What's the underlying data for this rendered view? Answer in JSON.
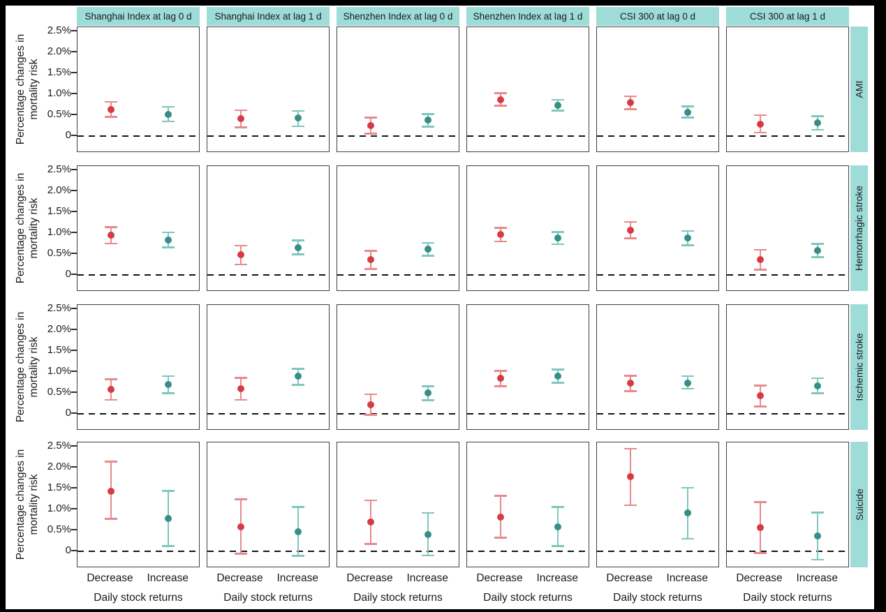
{
  "chart_data": {
    "type": "scatter",
    "subtype": "point-estimates-with-error-bars",
    "facet_cols": [
      "Shanghai Index at lag 0 d",
      "Shanghai Index at lag 1 d",
      "Shenzhen Index at lag 0 d",
      "Shenzhen Index at lag 1 d",
      "CSI 300 at lag 0 d",
      "CSI 300 at lag 1 d"
    ],
    "facet_rows": [
      "AMI",
      "Hemorrhagic stroke",
      "Ischemic stroke",
      "Suicide"
    ],
    "x_categories": [
      "Decrease",
      "Increase"
    ],
    "xlabel": "Daily stock returns",
    "ylabel_lines": [
      "Percentage changes in",
      "mortality risk"
    ],
    "y_ticks": [
      {
        "label": "2.5%",
        "value": 2.5
      },
      {
        "label": "2.0%",
        "value": 2.0
      },
      {
        "label": "1.5%",
        "value": 1.5
      },
      {
        "label": "1.0%",
        "value": 1.0
      },
      {
        "label": "0.5%",
        "value": 0.5
      },
      {
        "label": "0",
        "value": 0
      }
    ],
    "ylim": [
      -0.4,
      2.6
    ],
    "zero_line_value": 0,
    "grid": false,
    "legend": "none",
    "colors": {
      "decrease_point": "#d63b43",
      "decrease_bar": "#e9888d",
      "increase_point": "#348f89",
      "increase_bar": "#7fc7bc",
      "strip_bg": "#9edcd8",
      "panel_border": "#3f3f3f",
      "text": "#1a1a1a",
      "frame": "#000000",
      "background": "#ffffff"
    },
    "units": "percent change in mortality risk",
    "panels": [
      {
        "row": "AMI",
        "col": "Shanghai Index at lag 0 d",
        "points": [
          {
            "x": "Decrease",
            "est": 0.63,
            "ci": [
              0.44,
              0.84
            ]
          },
          {
            "x": "Increase",
            "est": 0.52,
            "ci": [
              0.33,
              0.72
            ]
          }
        ]
      },
      {
        "row": "AMI",
        "col": "Shanghai Index at lag 1 d",
        "points": [
          {
            "x": "Decrease",
            "est": 0.42,
            "ci": [
              0.19,
              0.64
            ]
          },
          {
            "x": "Increase",
            "est": 0.43,
            "ci": [
              0.21,
              0.62
            ]
          }
        ]
      },
      {
        "row": "AMI",
        "col": "Shenzhen Index at lag 0 d",
        "points": [
          {
            "x": "Decrease",
            "est": 0.25,
            "ci": [
              0.04,
              0.46
            ]
          },
          {
            "x": "Increase",
            "est": 0.39,
            "ci": [
              0.2,
              0.55
            ]
          }
        ]
      },
      {
        "row": "AMI",
        "col": "Shenzhen Index at lag 1 d",
        "points": [
          {
            "x": "Decrease",
            "est": 0.87,
            "ci": [
              0.7,
              1.05
            ]
          },
          {
            "x": "Increase",
            "est": 0.74,
            "ci": [
              0.59,
              0.89
            ]
          }
        ]
      },
      {
        "row": "AMI",
        "col": "CSI 300 at lag 0 d",
        "points": [
          {
            "x": "Decrease",
            "est": 0.8,
            "ci": [
              0.62,
              0.97
            ]
          },
          {
            "x": "Increase",
            "est": 0.57,
            "ci": [
              0.42,
              0.73
            ]
          }
        ]
      },
      {
        "row": "AMI",
        "col": "CSI 300 at lag 1 d",
        "points": [
          {
            "x": "Decrease",
            "est": 0.29,
            "ci": [
              0.06,
              0.52
            ]
          },
          {
            "x": "Increase",
            "est": 0.32,
            "ci": [
              0.13,
              0.5
            ]
          }
        ]
      },
      {
        "row": "Hemorrhagic stroke",
        "col": "Shanghai Index at lag 0 d",
        "points": [
          {
            "x": "Decrease",
            "est": 0.95,
            "ci": [
              0.73,
              1.16
            ]
          },
          {
            "x": "Increase",
            "est": 0.84,
            "ci": [
              0.64,
              1.04
            ]
          }
        ]
      },
      {
        "row": "Hemorrhagic stroke",
        "col": "Shanghai Index at lag 1 d",
        "points": [
          {
            "x": "Decrease",
            "est": 0.48,
            "ci": [
              0.23,
              0.72
            ]
          },
          {
            "x": "Increase",
            "est": 0.65,
            "ci": [
              0.47,
              0.85
            ]
          }
        ]
      },
      {
        "row": "Hemorrhagic stroke",
        "col": "Shenzhen Index at lag 0 d",
        "points": [
          {
            "x": "Decrease",
            "est": 0.37,
            "ci": [
              0.12,
              0.6
            ]
          },
          {
            "x": "Increase",
            "est": 0.61,
            "ci": [
              0.44,
              0.79
            ]
          }
        ]
      },
      {
        "row": "Hemorrhagic stroke",
        "col": "Shenzhen Index at lag 1 d",
        "points": [
          {
            "x": "Decrease",
            "est": 0.97,
            "ci": [
              0.78,
              1.15
            ]
          },
          {
            "x": "Increase",
            "est": 0.88,
            "ci": [
              0.71,
              1.05
            ]
          }
        ]
      },
      {
        "row": "Hemorrhagic stroke",
        "col": "CSI 300 at lag 0 d",
        "points": [
          {
            "x": "Decrease",
            "est": 1.07,
            "ci": [
              0.85,
              1.29
            ]
          },
          {
            "x": "Increase",
            "est": 0.88,
            "ci": [
              0.69,
              1.07
            ]
          }
        ]
      },
      {
        "row": "Hemorrhagic stroke",
        "col": "CSI 300 at lag 1 d",
        "points": [
          {
            "x": "Decrease",
            "est": 0.37,
            "ci": [
              0.1,
              0.62
            ]
          },
          {
            "x": "Increase",
            "est": 0.58,
            "ci": [
              0.4,
              0.76
            ]
          }
        ]
      },
      {
        "row": "Ischemic stroke",
        "col": "Shanghai Index at lag 0 d",
        "points": [
          {
            "x": "Decrease",
            "est": 0.58,
            "ci": [
              0.31,
              0.85
            ]
          },
          {
            "x": "Increase",
            "est": 0.7,
            "ci": [
              0.47,
              0.92
            ]
          }
        ]
      },
      {
        "row": "Ischemic stroke",
        "col": "Shanghai Index at lag 1 d",
        "points": [
          {
            "x": "Decrease",
            "est": 0.6,
            "ci": [
              0.31,
              0.88
            ]
          },
          {
            "x": "Increase",
            "est": 0.9,
            "ci": [
              0.67,
              1.1
            ]
          }
        ]
      },
      {
        "row": "Ischemic stroke",
        "col": "Shenzhen Index at lag 0 d",
        "points": [
          {
            "x": "Decrease",
            "est": 0.22,
            "ci": [
              -0.05,
              0.49
            ]
          },
          {
            "x": "Increase",
            "est": 0.5,
            "ci": [
              0.3,
              0.68
            ]
          }
        ]
      },
      {
        "row": "Ischemic stroke",
        "col": "Shenzhen Index at lag 1 d",
        "points": [
          {
            "x": "Decrease",
            "est": 0.85,
            "ci": [
              0.64,
              1.05
            ]
          },
          {
            "x": "Increase",
            "est": 0.9,
            "ci": [
              0.72,
              1.08
            ]
          }
        ]
      },
      {
        "row": "Ischemic stroke",
        "col": "CSI 300 at lag 0 d",
        "points": [
          {
            "x": "Decrease",
            "est": 0.73,
            "ci": [
              0.52,
              0.93
            ]
          },
          {
            "x": "Increase",
            "est": 0.74,
            "ci": [
              0.58,
              0.92
            ]
          }
        ]
      },
      {
        "row": "Ischemic stroke",
        "col": "CSI 300 at lag 1 d",
        "points": [
          {
            "x": "Decrease",
            "est": 0.44,
            "ci": [
              0.15,
              0.7
            ]
          },
          {
            "x": "Increase",
            "est": 0.67,
            "ci": [
              0.47,
              0.87
            ]
          }
        ]
      },
      {
        "row": "Suicide",
        "col": "Shanghai Index at lag 0 d",
        "points": [
          {
            "x": "Decrease",
            "est": 1.44,
            "ci": [
              0.75,
              2.16
            ]
          },
          {
            "x": "Increase",
            "est": 0.78,
            "ci": [
              0.1,
              1.46
            ]
          }
        ]
      },
      {
        "row": "Suicide",
        "col": "Shanghai Index at lag 1 d",
        "points": [
          {
            "x": "Decrease",
            "est": 0.58,
            "ci": [
              -0.08,
              1.26
            ]
          },
          {
            "x": "Increase",
            "est": 0.47,
            "ci": [
              -0.13,
              1.08
            ]
          }
        ]
      },
      {
        "row": "Suicide",
        "col": "Shenzhen Index at lag 0 d",
        "points": [
          {
            "x": "Decrease",
            "est": 0.7,
            "ci": [
              0.15,
              1.24
            ]
          },
          {
            "x": "Increase",
            "est": 0.4,
            "ci": [
              -0.12,
              0.94
            ]
          }
        ]
      },
      {
        "row": "Suicide",
        "col": "Shenzhen Index at lag 1 d",
        "points": [
          {
            "x": "Decrease",
            "est": 0.82,
            "ci": [
              0.3,
              1.35
            ]
          },
          {
            "x": "Increase",
            "est": 0.58,
            "ci": [
              0.1,
              1.08
            ]
          }
        ]
      },
      {
        "row": "Suicide",
        "col": "CSI 300 at lag 0 d",
        "points": [
          {
            "x": "Decrease",
            "est": 1.78,
            "ci": [
              1.08,
              2.47
            ]
          },
          {
            "x": "Increase",
            "est": 0.92,
            "ci": [
              0.28,
              1.54
            ]
          }
        ]
      },
      {
        "row": "Suicide",
        "col": "CSI 300 at lag 1 d",
        "points": [
          {
            "x": "Decrease",
            "est": 0.56,
            "ci": [
              -0.06,
              1.2
            ]
          },
          {
            "x": "Increase",
            "est": 0.36,
            "ci": [
              -0.22,
              0.95
            ]
          }
        ]
      }
    ]
  }
}
